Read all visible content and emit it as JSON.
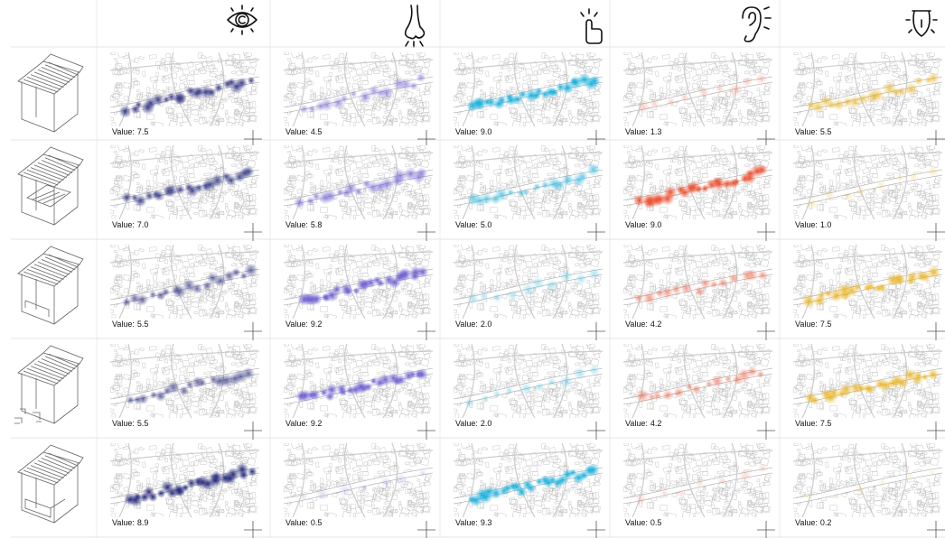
{
  "value_label": "Value:",
  "rows": [
    [
      "7.5",
      "4.5",
      "9.0",
      "1.3",
      "5.5"
    ],
    [
      "7.0",
      "5.8",
      "5.0",
      "9.0",
      "1.0"
    ],
    [
      "5.5",
      "9.2",
      "2.0",
      "4.2",
      "7.5"
    ],
    [
      "5.5",
      "9.2",
      "2.0",
      "4.2",
      "7.5"
    ],
    [
      "8.9",
      "0.5",
      "9.3",
      "0.5",
      "0.2"
    ]
  ]
}
